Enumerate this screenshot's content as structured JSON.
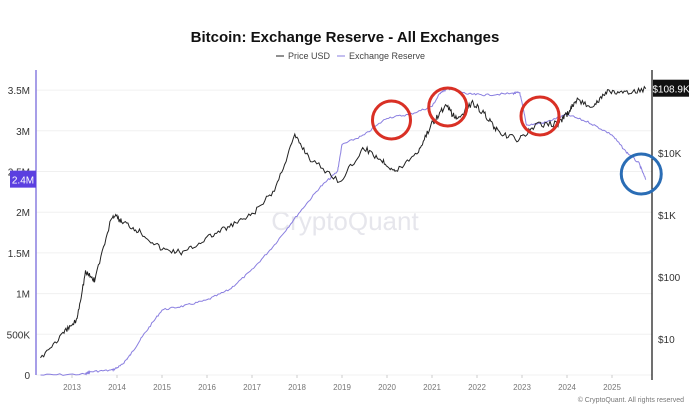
{
  "chart_data": {
    "type": "line",
    "title": "Bitcoin: Exchange Reserve - All Exchanges",
    "legend": [
      "Price USD",
      "Exchange Reserve"
    ],
    "legend_placement": "top-center",
    "x_ticks": [
      "2013",
      "2014",
      "2015",
      "2016",
      "2017",
      "2018",
      "2019",
      "2020",
      "2021",
      "2022",
      "2023",
      "2024",
      "2025"
    ],
    "xlim": [
      2012.2,
      2025.9
    ],
    "left_axis": {
      "ticks": [
        "0",
        "500K",
        "1M",
        "1.5M",
        "2M",
        "2.5M",
        "3M",
        "3.5M"
      ],
      "ylim": [
        0,
        3700000
      ]
    },
    "right_axis": {
      "ticks": [
        "$10",
        "$100",
        "$1K",
        "$10K"
      ],
      "scale": "log",
      "ylim": [
        3,
        200000
      ]
    },
    "series": [
      {
        "name": "Exchange Reserve",
        "axis": "left",
        "color": "#8a7fe0",
        "x": [
          2012.3,
          2013.3,
          2013.4,
          2013.9,
          2014.1,
          2014.3,
          2014.6,
          2015.0,
          2015.5,
          2016.0,
          2016.5,
          2017.0,
          2017.5,
          2018.0,
          2018.5,
          2018.9,
          2019.0,
          2019.5,
          2020.0,
          2020.5,
          2021.0,
          2021.2,
          2021.4,
          2021.8,
          2022.2,
          2022.8,
          2022.95,
          2023.1,
          2023.5,
          2024.0,
          2024.5,
          2025.0,
          2025.3,
          2025.6,
          2025.75
        ],
        "y": [
          0,
          10000,
          40000,
          60000,
          120000,
          250000,
          500000,
          800000,
          850000,
          920000,
          1050000,
          1290000,
          1600000,
          1960000,
          2300000,
          2500000,
          2830000,
          2950000,
          3160000,
          3200000,
          3300000,
          3480000,
          3520000,
          3450000,
          3440000,
          3460000,
          3470000,
          3070000,
          3100000,
          3200000,
          3100000,
          2950000,
          2750000,
          2600000,
          2400000
        ]
      },
      {
        "name": "Price USD",
        "axis": "right",
        "color": "#222222",
        "x": [
          2012.3,
          2012.8,
          2013.1,
          2013.3,
          2013.5,
          2013.9,
          2014.1,
          2014.5,
          2015.0,
          2015.5,
          2016.0,
          2016.5,
          2017.0,
          2017.5,
          2017.95,
          2018.3,
          2018.95,
          2019.5,
          2019.9,
          2020.2,
          2020.7,
          2021.0,
          2021.3,
          2021.55,
          2021.9,
          2022.2,
          2022.5,
          2022.95,
          2023.3,
          2023.8,
          2024.0,
          2024.2,
          2024.6,
          2024.9,
          2025.3,
          2025.75
        ],
        "y": [
          5,
          12,
          20,
          120,
          90,
          1000,
          800,
          550,
          280,
          250,
          430,
          650,
          1000,
          2500,
          19000,
          8000,
          3500,
          12000,
          7500,
          5000,
          11000,
          30000,
          58000,
          35000,
          65000,
          40000,
          20000,
          16500,
          28000,
          30000,
          42000,
          70000,
          58000,
          100000,
          90000,
          108900
        ]
      }
    ],
    "badges": {
      "reserve_last": "2.4M",
      "price_last": "$108.9K"
    },
    "annotations": {
      "red_circles_at": [
        2020.1,
        2021.35,
        2023.4
      ],
      "blue_circle_at": 2025.65
    },
    "watermark": "CryptoQuant",
    "copyright": "© CryptoQuant. All rights reserved"
  }
}
